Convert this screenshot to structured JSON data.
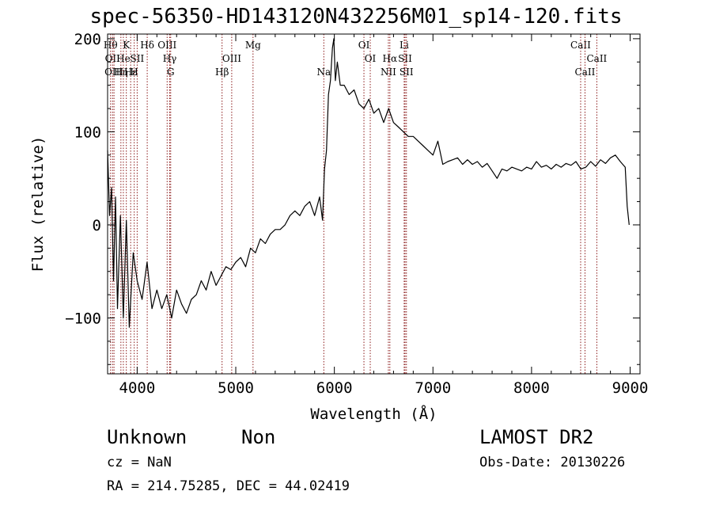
{
  "title": "spec-56350-HD143120N432256M01_sp14-120.fits",
  "info": {
    "object": "Unknown",
    "class": "Non",
    "survey": "LAMOST DR2",
    "cz": "cz = NaN",
    "obs_date": "Obs-Date: 20130226",
    "radec": "RA = 214.75285, DEC =  44.02419"
  },
  "chart_data": {
    "type": "line",
    "title": "spec-56350-HD143120N432256M01_sp14-120.fits",
    "xlabel": "Wavelength (Å)",
    "ylabel": "Flux (relative)",
    "xlim": [
      3700,
      9100
    ],
    "ylim": [
      -160,
      205
    ],
    "xticks": [
      4000,
      5000,
      6000,
      7000,
      8000,
      9000
    ],
    "yticks": [
      -100,
      0,
      100,
      200
    ],
    "grid": false,
    "line_color": "#000000",
    "marker_color": "#8b1a1a",
    "series": [
      {
        "x": [
          3700,
          3720,
          3740,
          3760,
          3780,
          3800,
          3830,
          3860,
          3890,
          3920,
          3960,
          4000,
          4050,
          4100,
          4150,
          4200,
          4250,
          4300,
          4350,
          4400,
          4450,
          4500,
          4550,
          4600,
          4650,
          4700,
          4750,
          4800,
          4850,
          4900,
          4950,
          5000,
          5050,
          5100,
          5150,
          5200,
          5250,
          5300,
          5350,
          5400,
          5450,
          5500,
          5550,
          5600,
          5650,
          5700,
          5750,
          5800,
          5850,
          5880,
          5900,
          5920,
          5940,
          5960,
          5980,
          5995,
          6010,
          6030,
          6060,
          6100,
          6150,
          6200,
          6250,
          6300,
          6350,
          6400,
          6450,
          6500,
          6550,
          6600,
          6650,
          6700,
          6750,
          6800,
          6850,
          6900,
          6950,
          7000,
          7050,
          7100,
          7150,
          7200,
          7250,
          7300,
          7350,
          7400,
          7450,
          7500,
          7550,
          7600,
          7650,
          7700,
          7750,
          7800,
          7850,
          7900,
          7950,
          8000,
          8050,
          8100,
          8150,
          8200,
          8250,
          8300,
          8350,
          8400,
          8450,
          8500,
          8550,
          8600,
          8650,
          8700,
          8750,
          8800,
          8850,
          8900,
          8950,
          8970,
          8990
        ],
        "y": [
          80,
          10,
          40,
          -60,
          30,
          -90,
          10,
          -100,
          5,
          -110,
          -30,
          -60,
          -80,
          -40,
          -90,
          -70,
          -90,
          -75,
          -100,
          -70,
          -85,
          -95,
          -80,
          -75,
          -60,
          -70,
          -50,
          -65,
          -55,
          -45,
          -48,
          -40,
          -35,
          -45,
          -25,
          -30,
          -15,
          -20,
          -10,
          -5,
          -5,
          0,
          10,
          15,
          10,
          20,
          25,
          10,
          30,
          5,
          60,
          80,
          140,
          155,
          190,
          200,
          155,
          175,
          150,
          150,
          140,
          145,
          130,
          125,
          135,
          120,
          125,
          110,
          125,
          110,
          105,
          100,
          95,
          95,
          90,
          85,
          80,
          75,
          90,
          65,
          68,
          70,
          72,
          65,
          70,
          65,
          68,
          62,
          66,
          58,
          50,
          60,
          58,
          62,
          60,
          58,
          62,
          60,
          68,
          62,
          64,
          60,
          65,
          62,
          66,
          64,
          68,
          60,
          62,
          68,
          63,
          70,
          66,
          72,
          75,
          68,
          62,
          20,
          0
        ]
      }
    ],
    "lines": [
      {
        "x": 3730,
        "name": "Hθ",
        "row": 0
      },
      {
        "x": 3750,
        "name": "OII",
        "row": 1
      },
      {
        "x": 3765,
        "name": "OIII",
        "row": 2
      },
      {
        "x": 3835,
        "name": "Hη",
        "row": 2
      },
      {
        "x": 3860,
        "name": "He",
        "row": 1
      },
      {
        "x": 3890,
        "name": "K",
        "row": 0
      },
      {
        "x": 3934,
        "name": "Hε",
        "row": 2
      },
      {
        "x": 3970,
        "name": "H",
        "row": 2
      },
      {
        "x": 4000,
        "name": "SII",
        "row": 1
      },
      {
        "x": 4102,
        "name": "Hδ",
        "row": 0
      },
      {
        "x": 4304,
        "name": "OIII",
        "row": 0
      },
      {
        "x": 4330,
        "name": "Hγ",
        "row": 1
      },
      {
        "x": 4340,
        "name": "G",
        "row": 2
      },
      {
        "x": 4861,
        "name": "Hβ",
        "row": 2
      },
      {
        "x": 4959,
        "name": "OIII",
        "row": 1
      },
      {
        "x": 5175,
        "name": "Mg",
        "row": 0
      },
      {
        "x": 5893,
        "name": "Na",
        "row": 2
      },
      {
        "x": 6300,
        "name": "OI",
        "row": 0
      },
      {
        "x": 6364,
        "name": "OI",
        "row": 1
      },
      {
        "x": 6548,
        "name": "NII",
        "row": 2
      },
      {
        "x": 6563,
        "name": "Hα",
        "row": 1
      },
      {
        "x": 6708,
        "name": "Li",
        "row": 0
      },
      {
        "x": 6717,
        "name": "SII",
        "row": 1
      },
      {
        "x": 6731,
        "name": "SII",
        "row": 2
      },
      {
        "x": 8498,
        "name": "CaII",
        "row": 0
      },
      {
        "x": 8542,
        "name": "CaII",
        "row": 2
      },
      {
        "x": 8662,
        "name": "CaII",
        "row": 1
      }
    ]
  }
}
